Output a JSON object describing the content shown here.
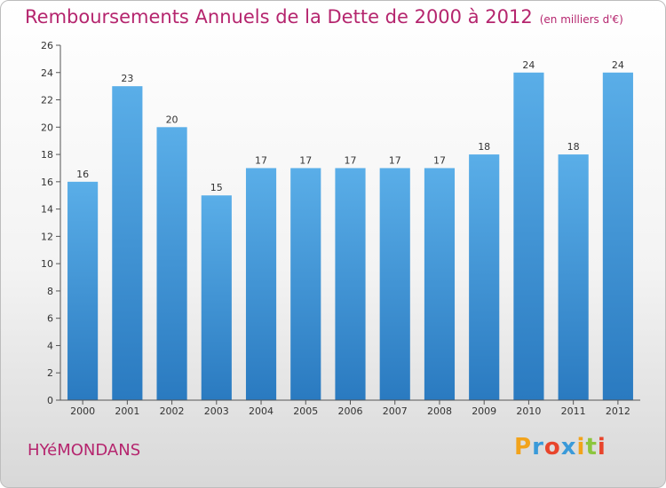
{
  "header": {
    "title": "Remboursements Annuels de la Dette de 2000 à 2012",
    "unit": "(en milliers d'€)"
  },
  "footer": {
    "commune": "HYéMONDANS",
    "logo_text": "Proxiti",
    "logo_colors": [
      "#f2a31b",
      "#3a9ad9",
      "#e8452c",
      "#3a9ad9",
      "#f2a31b",
      "#8cc63e",
      "#e8452c"
    ]
  },
  "colors": {
    "bar_top": "#5aaee8",
    "bar_bottom": "#2a7ac0",
    "title": "#b5256e"
  },
  "chart_data": {
    "type": "bar",
    "categories": [
      "2000",
      "2001",
      "2002",
      "2003",
      "2004",
      "2005",
      "2006",
      "2007",
      "2008",
      "2009",
      "2010",
      "2011",
      "2012"
    ],
    "values": [
      16,
      23,
      20,
      15,
      17,
      17,
      17,
      17,
      17,
      18,
      24,
      18,
      24
    ],
    "yticks": [
      0,
      2,
      4,
      6,
      8,
      10,
      12,
      14,
      16,
      18,
      20,
      22,
      24,
      26
    ],
    "ylim": [
      0,
      26
    ],
    "grid": false
  }
}
